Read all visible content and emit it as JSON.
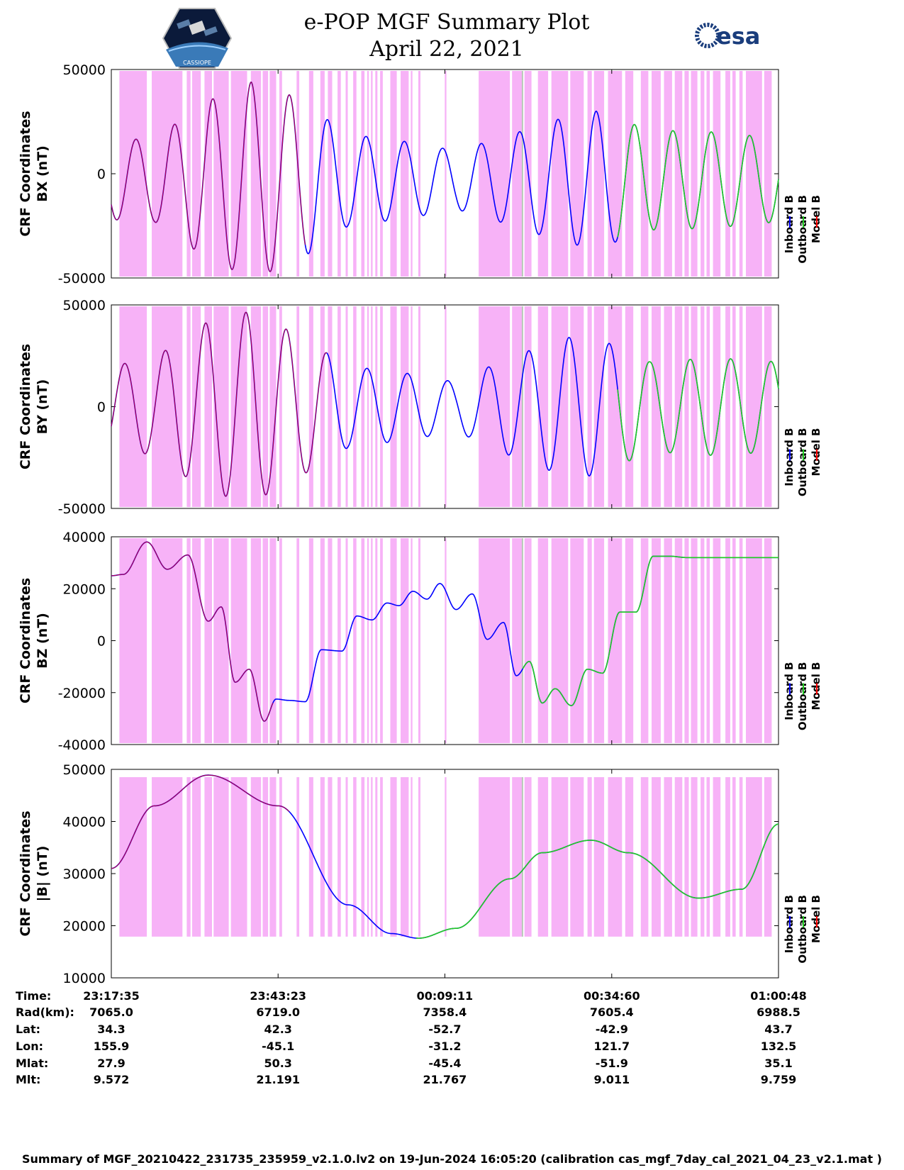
{
  "header": {
    "title_line1": "e-POP MGF Summary Plot",
    "title_line2": "April 22, 2021",
    "logo_left_text": "CASSIOPE",
    "logo_right_text": "esa"
  },
  "colors": {
    "inboard": "#0000ff",
    "outboard": "#22cc22",
    "model": "#ff0000",
    "shade": "#f7b2f7",
    "grey_marker": "#b9c9b9"
  },
  "chart_data": [
    {
      "type": "line",
      "name": "BX",
      "ylabel": [
        "CRF Coordinates",
        "BX (nT)"
      ],
      "ylim": [
        -50000,
        50000
      ],
      "yticks": [
        -50000,
        0,
        50000
      ],
      "ytick_labels": [
        "-50000",
        "0",
        "50000"
      ],
      "mode": "osc",
      "x_range_s": [
        0,
        6193
      ],
      "osc": {
        "offset": -3000,
        "period_s": 356,
        "phase_s": 140,
        "amp_knots_x": [
          0,
          400,
          900,
          1300,
          1700,
          2200,
          2800,
          3200,
          3600,
          4200,
          4500,
          5000,
          5600,
          6193
        ],
        "amp_knots_y": [
          19000,
          20000,
          38000,
          47000,
          40000,
          22000,
          18000,
          14000,
          20000,
          30000,
          33000,
          24000,
          23000,
          20000
        ]
      },
      "model_segments": [
        [
          0,
          1800
        ]
      ],
      "outboard_from_s": 4700
    },
    {
      "type": "line",
      "name": "BY",
      "ylabel": [
        "CRF Coordinates",
        "BY (nT)"
      ],
      "ylim": [
        -50000,
        50000
      ],
      "yticks": [
        -50000,
        0,
        50000
      ],
      "ytick_labels": [
        "-50000",
        "0",
        "50000"
      ],
      "mode": "osc",
      "x_range_s": [
        0,
        6193
      ],
      "osc": {
        "offset": 0,
        "period_s": 375,
        "phase_s": 30,
        "amp_knots_x": [
          0,
          400,
          900,
          1300,
          1700,
          2200,
          2800,
          3200,
          3600,
          4200,
          4500,
          5000,
          5600,
          6193
        ],
        "amp_knots_y": [
          20000,
          24000,
          42000,
          47000,
          36000,
          20000,
          16000,
          12000,
          22000,
          34000,
          34000,
          22000,
          24000,
          22000
        ]
      },
      "model_segments": [
        [
          0,
          2000
        ]
      ],
      "outboard_from_s": 4700
    },
    {
      "type": "line",
      "name": "BZ",
      "ylabel": [
        "CRF Coordinates",
        "BZ (nT)"
      ],
      "ylim": [
        -40000,
        40000
      ],
      "yticks": [
        -40000,
        -20000,
        0,
        20000,
        40000
      ],
      "ytick_labels": [
        "-40000",
        "-20000",
        "0",
        "20000",
        "40000"
      ],
      "mode": "knots",
      "x_range_s": [
        0,
        6193
      ],
      "knots_x": [
        0,
        110,
        330,
        520,
        710,
        900,
        1020,
        1150,
        1280,
        1420,
        1530,
        1650,
        1800,
        1950,
        2140,
        2280,
        2420,
        2560,
        2670,
        2800,
        2930,
        3050,
        3200,
        3350,
        3490,
        3640,
        3760,
        3880,
        4000,
        4120,
        4270,
        4420,
        4560,
        4720,
        4870,
        5030,
        5190,
        5340,
        5500,
        5640,
        5800,
        5950,
        6060,
        6193
      ],
      "knots_y": [
        25000,
        25500,
        38000,
        27500,
        33000,
        7500,
        13000,
        -16000,
        -11000,
        -31000,
        -22500,
        -23000,
        -23500,
        -3500,
        -4000,
        9500,
        8000,
        14500,
        13500,
        19000,
        16000,
        22000,
        12000,
        18000,
        500,
        7000,
        -13500,
        -8000,
        -24000,
        -18500,
        -25000,
        -11000,
        -12500,
        11000,
        11000,
        32500,
        32500,
        32000,
        32000,
        32000,
        32000,
        32000,
        32000,
        32000
      ],
      "model_segments": [
        [
          0,
          1500
        ]
      ],
      "outboard_from_s": 3820
    },
    {
      "type": "line",
      "name": "|B|",
      "ylabel": [
        "CRF Coordinates",
        "|B| (nT)"
      ],
      "ylim": [
        10000,
        50000
      ],
      "yticks": [
        10000,
        20000,
        30000,
        40000,
        50000
      ],
      "ytick_labels": [
        "10000",
        "20000",
        "30000",
        "40000",
        "50000"
      ],
      "mode": "knots",
      "x_range_s": [
        0,
        6193
      ],
      "knots_x": [
        0,
        400,
        900,
        1550,
        2200,
        2600,
        2850,
        3200,
        3700,
        4000,
        4450,
        4800,
        5450,
        5850,
        6193
      ],
      "knots_y": [
        31000,
        43000,
        48900,
        43000,
        24000,
        18500,
        17600,
        19500,
        29000,
        34000,
        36400,
        34000,
        25300,
        27000,
        39500
      ],
      "model_segments": [
        [
          0,
          1650
        ]
      ],
      "outboard_from_s": 2830
    }
  ],
  "x_axis": {
    "ticks_s": [
      0,
      1548,
      3096,
      4645,
      6193
    ],
    "labels": [
      "23:17:35",
      "23:43:23",
      "00:09:11",
      "00:34:60",
      "01:00:48"
    ]
  },
  "shading": {
    "bands_s": [
      [
        75,
        330
      ],
      [
        375,
        660
      ],
      [
        700,
        735
      ],
      [
        750,
        830
      ],
      [
        865,
        935
      ],
      [
        950,
        1090
      ],
      [
        1110,
        1260
      ],
      [
        1295,
        1390
      ],
      [
        1405,
        1455
      ],
      [
        1470,
        1530
      ],
      [
        1560,
        1585
      ],
      [
        1720,
        1745
      ],
      [
        1835,
        1875
      ],
      [
        1940,
        1980
      ],
      [
        2010,
        2050
      ],
      [
        2100,
        2130
      ],
      [
        2175,
        2195
      ],
      [
        2245,
        2275
      ],
      [
        2320,
        2350
      ],
      [
        2375,
        2390
      ],
      [
        2410,
        2425
      ],
      [
        2450,
        2470
      ],
      [
        2495,
        2520
      ],
      [
        2590,
        2650
      ],
      [
        2685,
        2760
      ],
      [
        2780,
        2795
      ],
      [
        2850,
        2870
      ],
      [
        3095,
        3110
      ],
      [
        3410,
        3700
      ],
      [
        3720,
        3820
      ],
      [
        3835,
        3900
      ],
      [
        3960,
        4055
      ],
      [
        4085,
        4240
      ],
      [
        4260,
        4385
      ],
      [
        4420,
        4460
      ],
      [
        4480,
        4575
      ],
      [
        4610,
        4740
      ],
      [
        4770,
        4845
      ],
      [
        4915,
        4985
      ],
      [
        5015,
        5100
      ],
      [
        5130,
        5205
      ],
      [
        5230,
        5300
      ],
      [
        5320,
        5360
      ],
      [
        5380,
        5440
      ],
      [
        5470,
        5505
      ],
      [
        5525,
        5555
      ],
      [
        5585,
        5655
      ],
      [
        5700,
        5745
      ],
      [
        5765,
        5795
      ],
      [
        5830,
        5860
      ],
      [
        5890,
        6040
      ],
      [
        6060,
        6130
      ]
    ],
    "grey_s": [
      3810,
      3822
    ]
  },
  "legend": [
    "Inboard B",
    "Outboard B",
    "Model B"
  ],
  "orbit_table": {
    "row_labels": [
      "Time:",
      "Rad(km):",
      "Lat:",
      "Lon:",
      "Mlat:",
      "Mlt:"
    ],
    "columns": [
      [
        "23:17:35",
        "7065.0",
        "34.3",
        "155.9",
        "27.9",
        "9.572"
      ],
      [
        "23:43:23",
        "6719.0",
        "42.3",
        "-45.1",
        "50.3",
        "21.191"
      ],
      [
        "00:09:11",
        "7358.4",
        "-52.7",
        "-31.2",
        "-45.4",
        "21.767"
      ],
      [
        "00:34:60",
        "7605.4",
        "-42.9",
        "121.7",
        "-51.9",
        "9.011"
      ],
      [
        "01:00:48",
        "6988.5",
        "43.7",
        "132.5",
        "35.1",
        "9.759"
      ]
    ]
  },
  "footer": "Summary of MGF_20210422_231735_235959_v2.1.0.lv2 on 19-Jun-2024 16:05:20 (calibration cas_mgf_7day_cal_2021_04_23_v2.1.mat )"
}
